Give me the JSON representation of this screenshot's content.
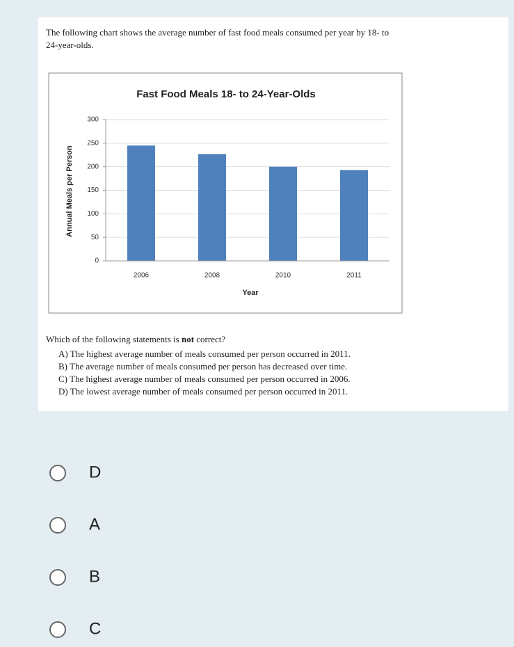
{
  "intro": [
    "The following chart shows the average number of fast food meals consumed per year by 18- to",
    "24-year-olds."
  ],
  "chart_data": {
    "type": "bar",
    "title": "Fast Food Meals 18- to 24-Year-Olds",
    "x_label": "Year",
    "y_label": "Annual Meals per Person",
    "categories": [
      "2006",
      "2008",
      "2010",
      "2011"
    ],
    "values": [
      245,
      227,
      200,
      193
    ],
    "color": "#4f81bd",
    "ylim": [
      0,
      300
    ],
    "yticks": [
      0,
      50,
      100,
      150,
      200,
      250,
      300
    ],
    "grid": true
  },
  "question": {
    "before": "Which of the following statements is ",
    "bold": "not",
    "after": " correct?",
    "statements": [
      "A) The highest average number of meals consumed per person occurred in 2011.",
      "B) The average number of meals consumed per person has decreased over time.",
      "C) The highest average number of meals consumed per person occurred in 2006.",
      "D) The lowest average number of meals consumed per person occurred in 2011."
    ]
  },
  "choices": [
    "D",
    "A",
    "B",
    "C"
  ]
}
